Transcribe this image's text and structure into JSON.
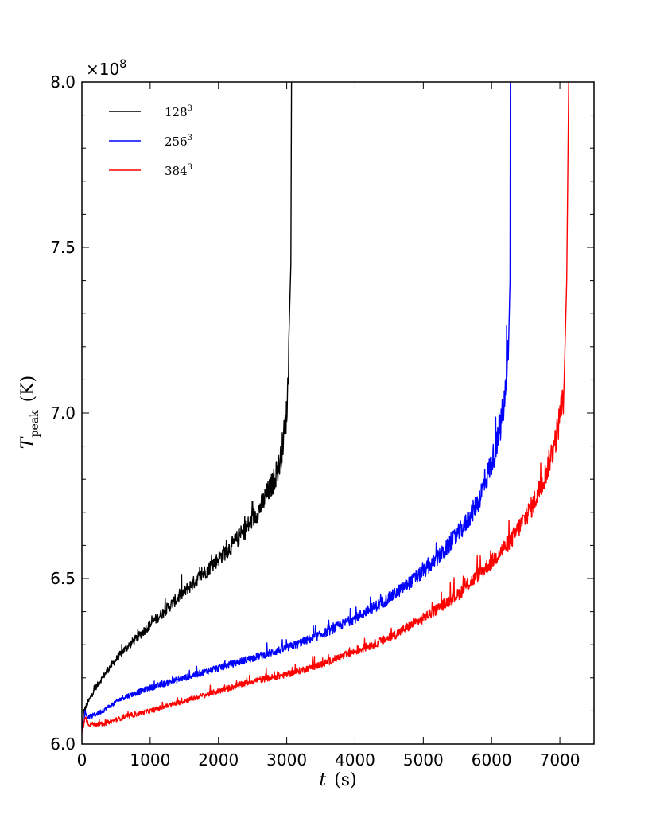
{
  "chart_data": {
    "type": "line",
    "xlabel_var": "t",
    "xlabel_unit": "(s)",
    "ylabel_var": "T",
    "ylabel_sub": "peak",
    "ylabel_unit": "(K)",
    "y_offset_base": "×10",
    "y_offset_exp": "8",
    "xlim": [
      0,
      7500
    ],
    "ylim": [
      6.0,
      8.0
    ],
    "x_ticks": [
      0,
      1000,
      2000,
      3000,
      4000,
      5000,
      6000,
      7000
    ],
    "x_tick_labels": [
      "0",
      "1000",
      "2000",
      "3000",
      "4000",
      "5000",
      "6000",
      "7000"
    ],
    "y_ticks": [
      6.0,
      6.5,
      7.0,
      7.5,
      8.0
    ],
    "y_tick_labels": [
      "6.0",
      "6.5",
      "7.0",
      "7.5",
      "8.0"
    ],
    "grid": false,
    "legend_placement": "top-left",
    "series": [
      {
        "name": "128",
        "name_sup": "3",
        "color": "#000000",
        "x": [
          0,
          30,
          100,
          200,
          400,
          600,
          800,
          1000,
          1200,
          1400,
          1600,
          1800,
          2000,
          2200,
          2400,
          2600,
          2800,
          2900,
          2950,
          3000,
          3030,
          3060,
          3070
        ],
        "y": [
          6.04,
          6.1,
          6.13,
          6.17,
          6.23,
          6.28,
          6.32,
          6.36,
          6.4,
          6.44,
          6.48,
          6.52,
          6.56,
          6.6,
          6.65,
          6.71,
          6.79,
          6.85,
          6.92,
          7.0,
          7.15,
          7.45,
          8.0
        ]
      },
      {
        "name": "256",
        "name_sup": "3",
        "color": "#0000ff",
        "x": [
          0,
          50,
          100,
          300,
          600,
          1000,
          1500,
          2000,
          2500,
          3000,
          3500,
          4000,
          4500,
          5000,
          5300,
          5600,
          5800,
          6000,
          6100,
          6200,
          6250,
          6270,
          6275
        ],
        "y": [
          6.04,
          6.09,
          6.08,
          6.1,
          6.14,
          6.17,
          6.2,
          6.23,
          6.26,
          6.29,
          6.33,
          6.38,
          6.44,
          6.52,
          6.58,
          6.66,
          6.73,
          6.85,
          6.92,
          7.05,
          7.2,
          7.4,
          8.0
        ]
      },
      {
        "name": "384",
        "name_sup": "3",
        "color": "#ff0000",
        "x": [
          0,
          50,
          100,
          300,
          600,
          1000,
          1500,
          2000,
          2500,
          3000,
          3500,
          4000,
          4500,
          5000,
          5500,
          6000,
          6300,
          6600,
          6800,
          6950,
          7050,
          7100,
          7130
        ],
        "y": [
          6.03,
          6.08,
          6.06,
          6.06,
          6.08,
          6.1,
          6.13,
          6.16,
          6.19,
          6.21,
          6.24,
          6.28,
          6.32,
          6.38,
          6.45,
          6.55,
          6.62,
          6.72,
          6.82,
          6.93,
          7.05,
          7.4,
          8.0
        ]
      }
    ]
  }
}
